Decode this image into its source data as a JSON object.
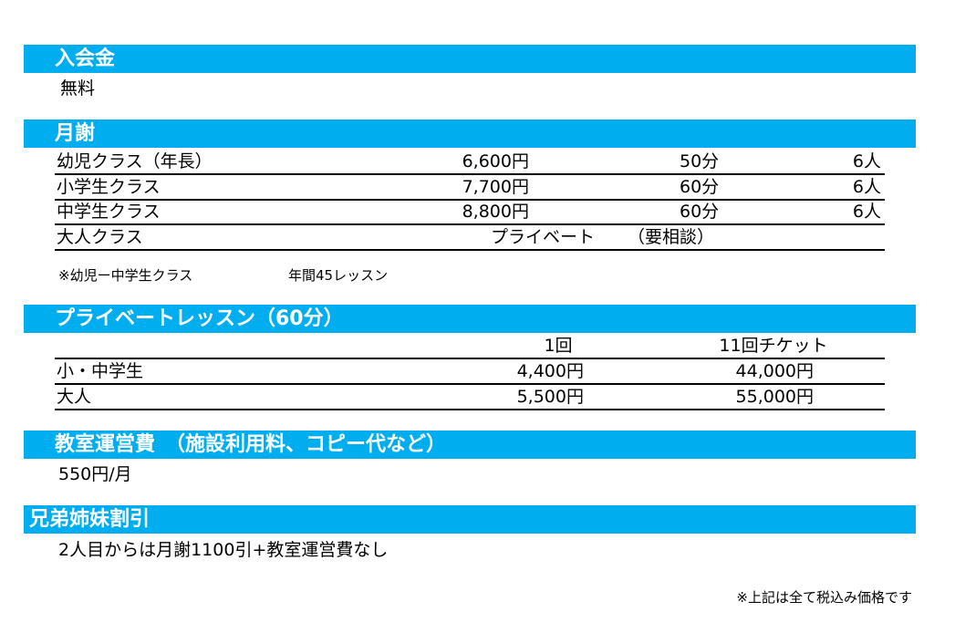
{
  "admission": {
    "title": "入会金",
    "value": "無料"
  },
  "tuition": {
    "title": "月謝",
    "rows": [
      {
        "name": "幼児クラス（年長）",
        "price": "6,600円",
        "minutes": "50分",
        "capacity": "6人"
      },
      {
        "name": "小学生クラス",
        "price": "7,700円",
        "minutes": "60分",
        "capacity": "6人"
      },
      {
        "name": "中学生クラス",
        "price": "8,800円",
        "minutes": "60分",
        "capacity": "6人"
      },
      {
        "name": "大人クラス",
        "note1": "プライベート",
        "note2": "（要相談）"
      }
    ],
    "footnote_a": "※幼児ー中学生クラス",
    "footnote_b": "年間45レッスン"
  },
  "private": {
    "title": "プライベートレッスン（60分）",
    "headers": [
      "1回",
      "11回チケット"
    ],
    "rows": [
      {
        "name": "小・中学生",
        "single": "4,400円",
        "ticket": "44,000円"
      },
      {
        "name": "大人",
        "single": "5,500円",
        "ticket": "55,000円"
      }
    ]
  },
  "operating": {
    "title": "教室運営費　（施設利用料、コピー代など）",
    "value": "550円/月"
  },
  "sibling": {
    "title": "兄弟姉妹割引",
    "value": "2人目からは月謝1100引+教室運営費なし"
  },
  "footer_note": "※上記は全て税込み価格です"
}
